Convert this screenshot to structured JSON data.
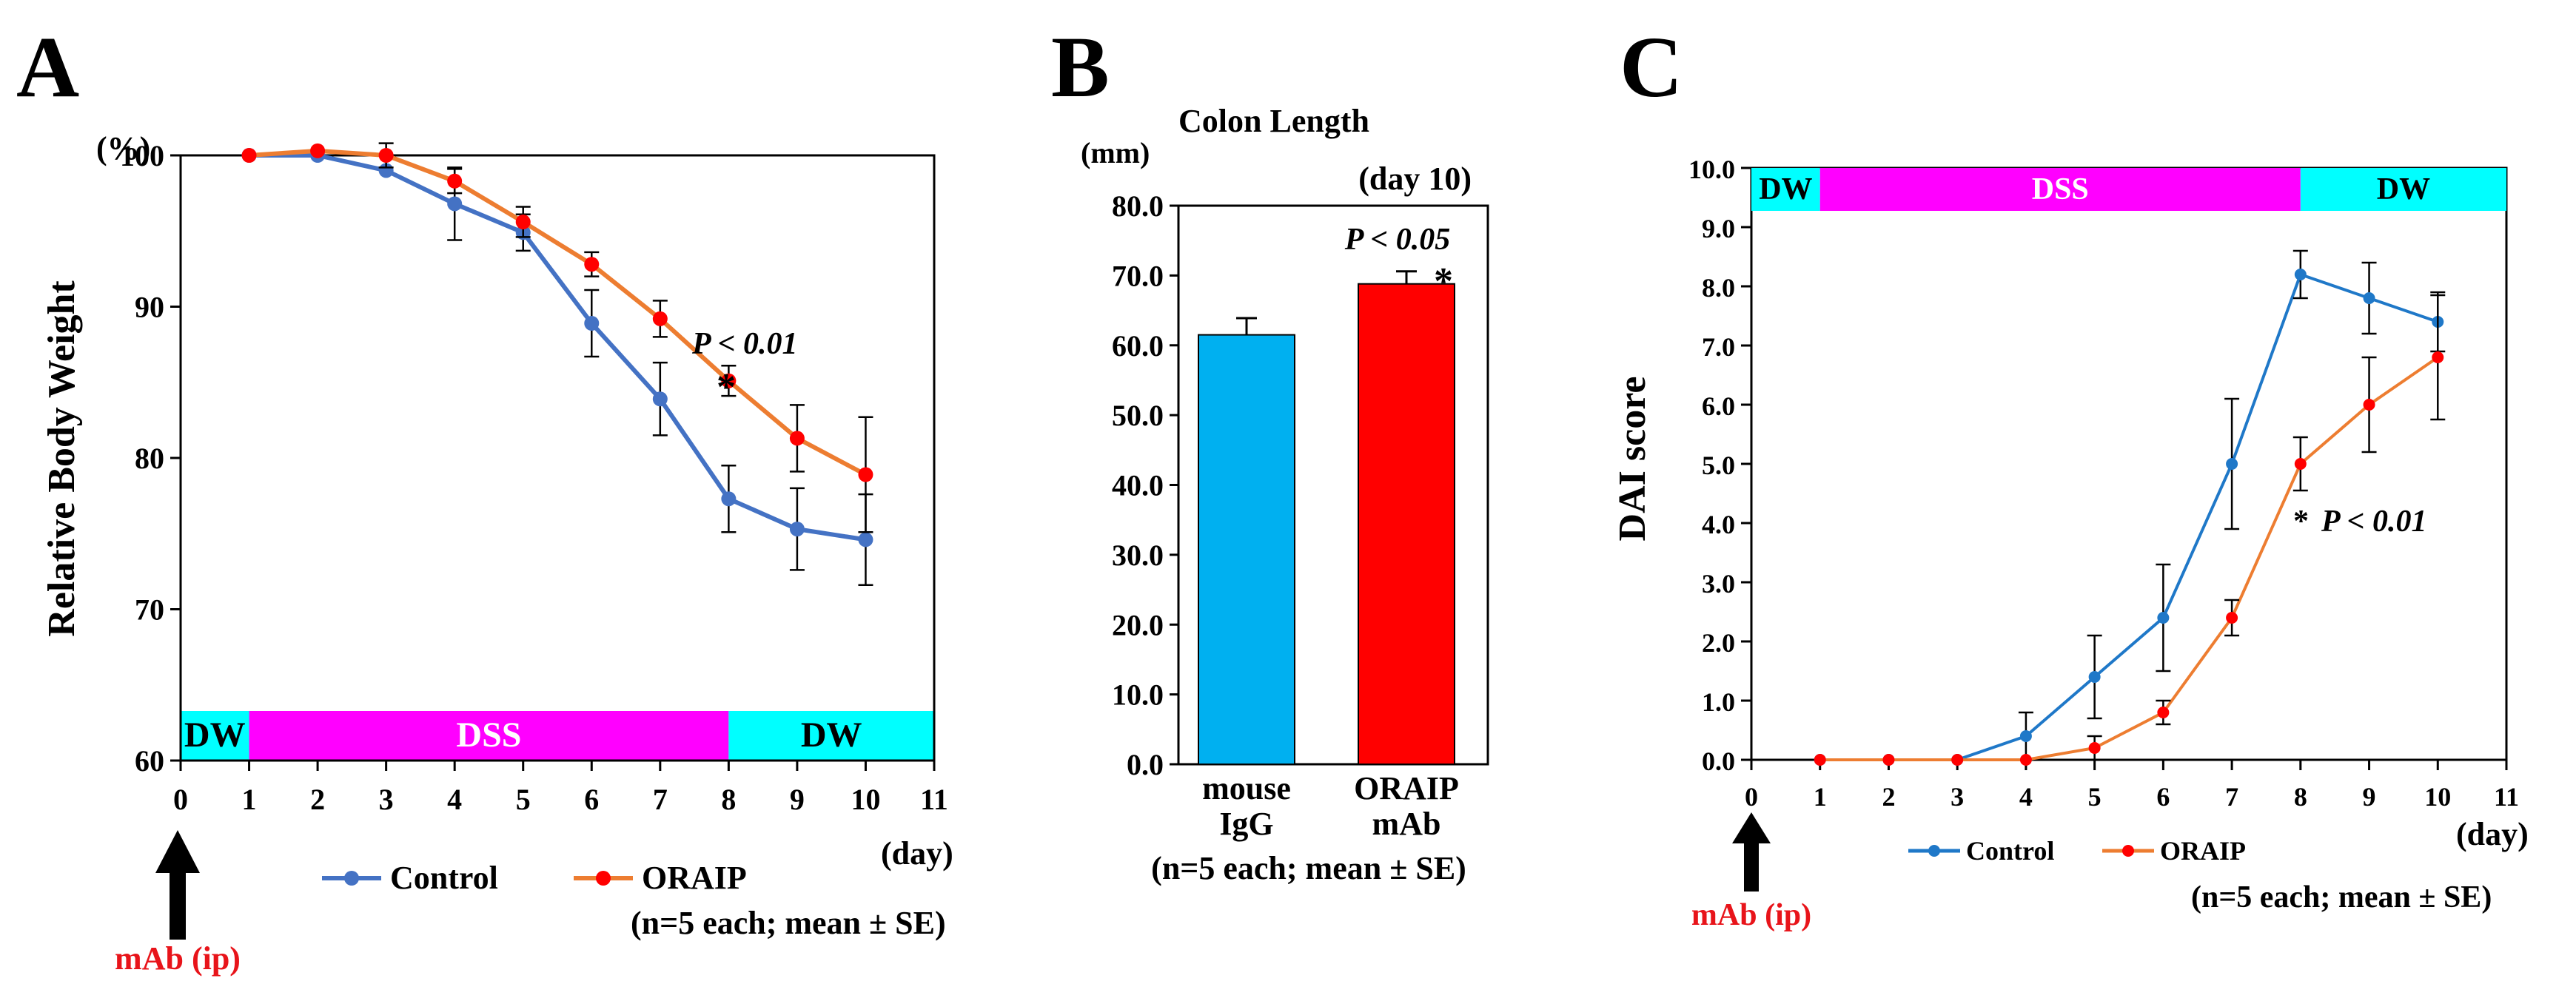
{
  "colors": {
    "control_a": "#4472c4",
    "oraip_a": "#ed7d31",
    "oraip_marker": "#ff0000",
    "control_c": "#1f78c8",
    "dw_band": "#00ffff",
    "dss_band": "#ff00ff",
    "bar_igg": "#00b0f0",
    "bar_oraip": "#ff0000",
    "annot_red": "#e8141a"
  },
  "annotations": {
    "a_significance": "P < 0.01",
    "b_significance": "P < 0.05",
    "c_significance": "P < 0.01",
    "star": "*",
    "mab_ip": "mAb (ip)"
  },
  "chart_data": [
    {
      "panel": "A",
      "type": "line",
      "title": "",
      "ylabel": "Relative Body Weight",
      "yunit": "(%)",
      "xlabel": "(day)",
      "xlim": [
        0,
        11
      ],
      "ylim": [
        60,
        100
      ],
      "xticks": [
        "0",
        "1",
        "2",
        "3",
        "4",
        "5",
        "6",
        "7",
        "8",
        "9",
        "10",
        "11"
      ],
      "yticks": [
        "60",
        "70",
        "80",
        "90",
        "100"
      ],
      "x": [
        1,
        2,
        3,
        4,
        5,
        6,
        7,
        8,
        9,
        10
      ],
      "series": [
        {
          "name": "Control",
          "values": [
            100,
            100,
            99,
            96.8,
            94.9,
            88.9,
            83.9,
            77.3,
            75.3,
            74.6
          ],
          "err": [
            0,
            0,
            0,
            2.4,
            1.2,
            2.2,
            2.4,
            2.2,
            2.7,
            3.0
          ]
        },
        {
          "name": "ORAIP",
          "values": [
            100,
            100.3,
            100,
            98.3,
            95.6,
            92.8,
            89.2,
            85.1,
            81.3,
            78.9
          ],
          "err": [
            0,
            0,
            0.8,
            0.8,
            1.0,
            0.8,
            1.2,
            1.0,
            2.2,
            3.8
          ]
        }
      ],
      "treatment_bands": [
        {
          "label": "DW",
          "from": 0,
          "to": 1
        },
        {
          "label": "DSS",
          "from": 1,
          "to": 8
        },
        {
          "label": "DW",
          "from": 8,
          "to": 11
        }
      ],
      "legend": [
        "Control",
        "ORAIP"
      ],
      "legend_note": "(n=5 each; mean ± SE)"
    },
    {
      "panel": "B",
      "type": "bar",
      "title": "Colon Length",
      "subtitle": "(day 10)",
      "yunit": "(mm)",
      "ylim": [
        0,
        80
      ],
      "yticks": [
        "0.0",
        "10.0",
        "20.0",
        "30.0",
        "40.0",
        "50.0",
        "60.0",
        "70.0",
        "80.0"
      ],
      "categories": [
        {
          "line1": "mouse",
          "line2": "IgG"
        },
        {
          "line1": "ORAIP",
          "line2": "mAb"
        }
      ],
      "values": [
        61.5,
        68.8
      ],
      "err": [
        2.4,
        1.8
      ],
      "note": "(n=5 each; mean ± SE)"
    },
    {
      "panel": "C",
      "type": "line",
      "title": "",
      "ylabel": "DAI score",
      "xlabel": "(day)",
      "xlim": [
        0,
        11
      ],
      "ylim": [
        0,
        10
      ],
      "xticks": [
        "0",
        "1",
        "2",
        "3",
        "4",
        "5",
        "6",
        "7",
        "8",
        "9",
        "10",
        "11"
      ],
      "yticks": [
        "0.0",
        "1.0",
        "2.0",
        "3.0",
        "4.0",
        "5.0",
        "6.0",
        "7.0",
        "8.0",
        "9.0",
        "10.0"
      ],
      "x": [
        1,
        2,
        3,
        4,
        5,
        6,
        7,
        8,
        9,
        10
      ],
      "series": [
        {
          "name": "Control",
          "values": [
            0,
            0,
            0,
            0.4,
            1.4,
            2.4,
            5.0,
            8.2,
            7.8,
            7.4
          ],
          "err": [
            0,
            0,
            0,
            0.4,
            0.7,
            0.9,
            1.1,
            0.4,
            0.6,
            0.5
          ]
        },
        {
          "name": "ORAIP",
          "values": [
            0,
            0,
            0,
            0,
            0.2,
            0.8,
            2.4,
            5.0,
            6.0,
            6.8
          ],
          "err": [
            0,
            0,
            0,
            0,
            0.2,
            0.2,
            0.3,
            0.45,
            0.8,
            1.05
          ]
        }
      ],
      "treatment_bands": [
        {
          "label": "DW",
          "from": 0,
          "to": 1
        },
        {
          "label": "DSS",
          "from": 1,
          "to": 8
        },
        {
          "label": "DW",
          "from": 8,
          "to": 11
        }
      ],
      "legend": [
        "Control",
        "ORAIP"
      ],
      "legend_note": "(n=5 each; mean ± SE)"
    }
  ]
}
